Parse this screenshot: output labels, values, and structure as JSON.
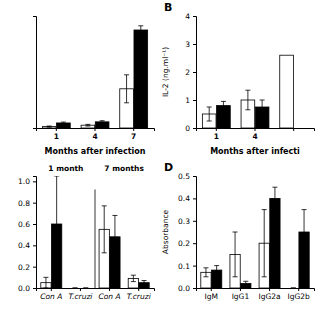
{
  "chart_data": [
    {
      "type": "bar",
      "categories": [
        "1",
        "4",
        "7"
      ],
      "series": [
        {
          "color": "white",
          "values": [
            0.05,
            0.1,
            1.4
          ],
          "errors": [
            0.02,
            0.03,
            0.5
          ]
        },
        {
          "color": "black",
          "values": [
            0.18,
            0.22,
            3.5
          ],
          "errors": [
            0.03,
            0.04,
            0.15
          ]
        }
      ],
      "xlabel": "Months after infection",
      "ylim": [
        0,
        4.0
      ],
      "yticks": [],
      "tick_labels": "x"
    },
    {
      "type": "bar",
      "title": "B",
      "categories": [
        "1",
        "4",
        null
      ],
      "series": [
        {
          "color": "white",
          "values": [
            0.5,
            1.0,
            2.6
          ],
          "errors": [
            0.25,
            0.35,
            null
          ]
        },
        {
          "color": "black",
          "values": [
            0.8,
            0.75,
            null
          ],
          "errors": [
            0.15,
            0.25,
            null
          ]
        }
      ],
      "xlabel": "Months after infecti",
      "ylabel": "IL-2 (ng.ml⁻¹)",
      "ylim": [
        0,
        4.0
      ],
      "yticks": [
        0,
        1,
        2,
        3,
        4
      ]
    },
    {
      "type": "bar",
      "categories": [
        "Con A",
        "T.cruzi",
        "Con A",
        "T.cruzi"
      ],
      "series": [
        {
          "color": "white",
          "values": [
            0.05,
            0.0,
            0.55,
            0.09
          ],
          "errors": [
            0.05,
            0.0,
            0.22,
            0.03
          ]
        },
        {
          "color": "black",
          "values": [
            0.6,
            0.0,
            0.48,
            0.05
          ],
          "errors": [
            0.45,
            0.0,
            0.2,
            0.02
          ]
        }
      ],
      "annotations": [
        "1 month",
        "7 months"
      ],
      "ylim": [
        0,
        1.05
      ],
      "yticks": [
        {
          "value": 0,
          "label": "0.0"
        },
        0.2,
        0.4,
        0.6,
        0.8,
        {
          "value": 1.0,
          "label": "1.0"
        }
      ]
    },
    {
      "type": "bar",
      "title": "D",
      "categories": [
        "IgM",
        "IgG1",
        "IgG2a",
        "IgG2b"
      ],
      "series": [
        {
          "color": "white",
          "values": [
            0.07,
            0.15,
            0.2,
            0.0
          ],
          "errors": [
            0.02,
            0.1,
            0.15,
            0.0
          ]
        },
        {
          "color": "black",
          "values": [
            0.08,
            0.02,
            0.4,
            0.25
          ],
          "errors": [
            0.02,
            0.01,
            0.05,
            0.1
          ]
        }
      ],
      "ylabel": "Absorbance",
      "ylim": [
        0,
        0.5
      ],
      "yticks": [
        {
          "value": 0,
          "label": "0.0"
        },
        0.1,
        0.2,
        0.3,
        0.4,
        0.5
      ]
    }
  ]
}
